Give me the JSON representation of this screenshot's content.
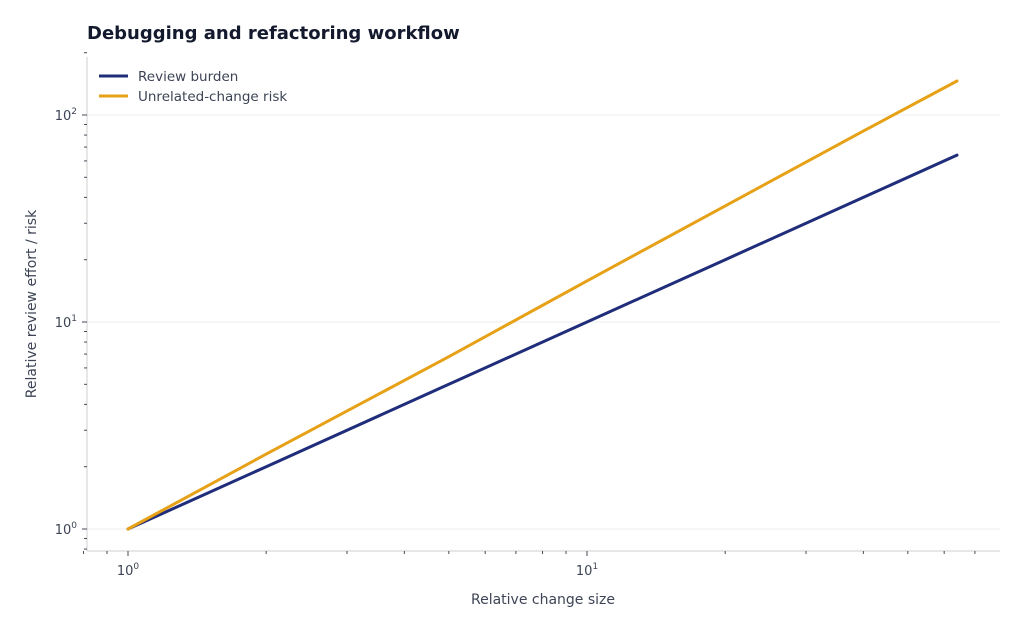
{
  "chart_data": {
    "type": "line",
    "title": "Debugging and refactoring workflow",
    "xlabel": "Relative change size",
    "ylabel": "Relative review effort / risk",
    "xscale": "log",
    "yscale": "log",
    "xlim": [
      0.8,
      70
    ],
    "ylim": [
      0.78,
      200
    ],
    "grid": "y-major",
    "legend_position": "top-left",
    "x_ticks": [
      {
        "value": 1,
        "base": "10",
        "exp": "0"
      },
      {
        "value": 10,
        "base": "10",
        "exp": "1"
      }
    ],
    "y_ticks": [
      {
        "value": 1,
        "base": "10",
        "exp": "0"
      },
      {
        "value": 10,
        "base": "10",
        "exp": "1"
      },
      {
        "value": 100,
        "base": "10",
        "exp": "2"
      }
    ],
    "x": [
      1,
      2,
      5,
      10,
      20,
      40,
      64
    ],
    "series": [
      {
        "name": "Review burden",
        "color": "#1f2d7a",
        "values": [
          1,
          2,
          5,
          10,
          20,
          40,
          64
        ]
      },
      {
        "name": "Unrelated-change risk",
        "color": "#e6a117",
        "values": [
          1,
          2.3,
          6.8,
          15.8,
          36.4,
          83.6,
          146
        ]
      }
    ]
  }
}
